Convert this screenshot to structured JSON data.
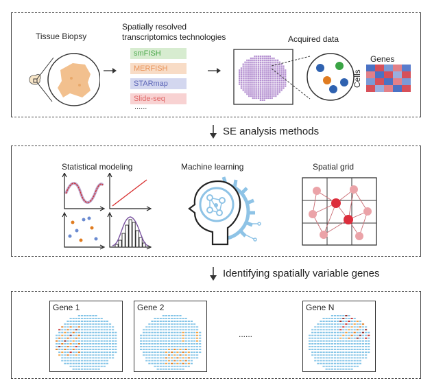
{
  "panel1": {
    "tissue_label": "Tissue Biopsy",
    "tech_title_line1": "Spatially resolved",
    "tech_title_line2": "transcriptomics technologies",
    "technologies": [
      {
        "label": "smFISH",
        "bg": "#d7ecd0",
        "color": "#4aa84a"
      },
      {
        "label": "MERFISH",
        "bg": "#f8dcc6",
        "color": "#e8935a"
      },
      {
        "label": "STARmap",
        "bg": "#d3d7ef",
        "color": "#5a63b6"
      },
      {
        "label": "Slide-seq",
        "bg": "#f8d2d2",
        "color": "#e06a6a"
      }
    ],
    "more": "......",
    "acquired_label": "Acquired data",
    "genes_label": "Genes",
    "cells_label": "Cells"
  },
  "step1": "SE analysis methods",
  "panel2": {
    "stat_label": "Statistical modeling",
    "ml_label": "Machine learning",
    "grid_label": "Spatial grid"
  },
  "step2": "Identifying spatially variable genes",
  "panel3": {
    "genes": [
      "Gene 1",
      "Gene 2",
      "Gene N"
    ],
    "dots": "......"
  },
  "colors": {
    "tissue": "#f2c08e",
    "spot_purple": "#b48fd0",
    "grid_red": "#dc2e3c",
    "grid_pink": "#eba3a8",
    "ml_blue": "#8ec3e6"
  }
}
